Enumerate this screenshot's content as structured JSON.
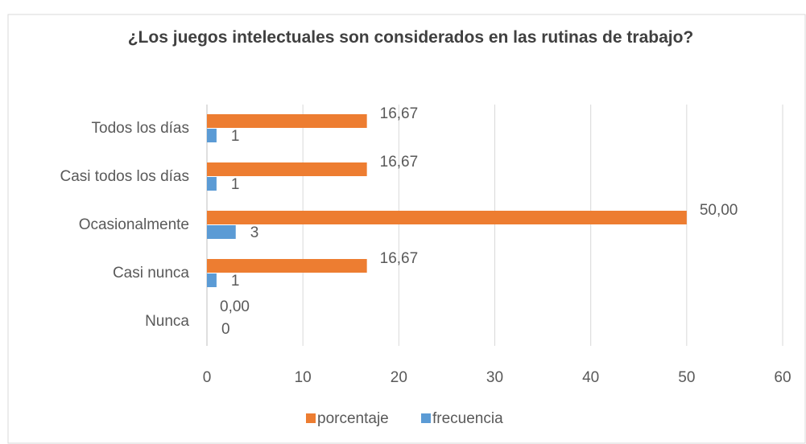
{
  "chart_data": {
    "type": "bar",
    "orientation": "horizontal",
    "title": "¿Los juegos intelectuales son considerados en las rutinas de trabajo?",
    "categories": [
      "Todos los días",
      "Casi todos los días",
      "Ocasionalmente",
      "Casi nunca",
      "Nunca"
    ],
    "series": [
      {
        "name": "porcentaje",
        "color": "#ed7d31",
        "values": [
          16.67,
          16.67,
          50,
          16.67,
          0
        ],
        "value_labels": [
          "16,67",
          "16,67",
          "50,00",
          "16,67",
          "0,00"
        ]
      },
      {
        "name": "frecuencia",
        "color": "#5b9bd5",
        "values": [
          1,
          1,
          3,
          1,
          0
        ]
      }
    ],
    "xlim": [
      0,
      60
    ],
    "xticks": [
      0,
      10,
      20,
      30,
      40,
      50,
      60
    ],
    "grid": true,
    "legend": "bottom"
  }
}
